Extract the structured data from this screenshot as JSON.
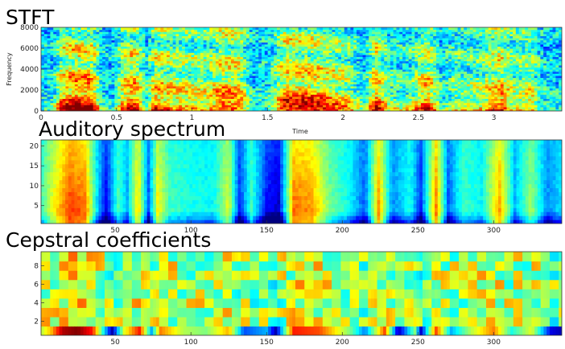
{
  "chart_data": [
    {
      "type": "heatmap",
      "title": "STFT",
      "xlabel": "Time",
      "ylabel": "Frequency",
      "xlim": [
        0,
        3.45
      ],
      "ylim": [
        0,
        8000
      ],
      "x_ticks": [
        0,
        0.5,
        1,
        1.5,
        2,
        2.5,
        3
      ],
      "x_tick_labels": [
        "0",
        "0.5",
        "1",
        "1.5",
        "2",
        "2.5",
        "3"
      ],
      "y_ticks": [
        0,
        2000,
        4000,
        6000,
        8000
      ],
      "y_tick_labels": [
        "0",
        "2000",
        "4000",
        "6000",
        "8000"
      ],
      "colormap": "jet",
      "energy_envelope": [
        {
          "x": 0.0,
          "v": 0.3
        },
        {
          "x": 0.08,
          "v": 0.35
        },
        {
          "x": 0.14,
          "v": 0.85
        },
        {
          "x": 0.22,
          "v": 1.0
        },
        {
          "x": 0.34,
          "v": 0.95
        },
        {
          "x": 0.4,
          "v": 0.35
        },
        {
          "x": 0.48,
          "v": 0.3
        },
        {
          "x": 0.55,
          "v": 0.8
        },
        {
          "x": 0.62,
          "v": 0.95
        },
        {
          "x": 0.7,
          "v": 0.4
        },
        {
          "x": 0.76,
          "v": 0.85
        },
        {
          "x": 0.86,
          "v": 0.75
        },
        {
          "x": 1.0,
          "v": 0.7
        },
        {
          "x": 1.1,
          "v": 0.65
        },
        {
          "x": 1.2,
          "v": 0.9
        },
        {
          "x": 1.32,
          "v": 0.8
        },
        {
          "x": 1.4,
          "v": 0.3
        },
        {
          "x": 1.52,
          "v": 0.4
        },
        {
          "x": 1.62,
          "v": 0.95
        },
        {
          "x": 1.8,
          "v": 0.9
        },
        {
          "x": 1.96,
          "v": 0.75
        },
        {
          "x": 2.05,
          "v": 0.65
        },
        {
          "x": 2.14,
          "v": 0.3
        },
        {
          "x": 2.22,
          "v": 0.92
        },
        {
          "x": 2.3,
          "v": 0.5
        },
        {
          "x": 2.4,
          "v": 0.45
        },
        {
          "x": 2.48,
          "v": 0.6
        },
        {
          "x": 2.56,
          "v": 0.9
        },
        {
          "x": 2.66,
          "v": 0.35
        },
        {
          "x": 2.74,
          "v": 0.55
        },
        {
          "x": 2.84,
          "v": 0.55
        },
        {
          "x": 2.92,
          "v": 0.6
        },
        {
          "x": 3.04,
          "v": 0.9
        },
        {
          "x": 3.14,
          "v": 0.55
        },
        {
          "x": 3.24,
          "v": 0.7
        },
        {
          "x": 3.32,
          "v": 0.35
        },
        {
          "x": 3.45,
          "v": 0.3
        }
      ]
    },
    {
      "type": "heatmap",
      "title": "Auditory spectrum",
      "xlabel": "",
      "ylabel": "",
      "xlim": [
        1,
        345
      ],
      "ylim": [
        0.5,
        21.5
      ],
      "x_ticks": [
        50,
        100,
        150,
        200,
        250,
        300
      ],
      "x_tick_labels": [
        "50",
        "100",
        "150",
        "200",
        "250",
        "300"
      ],
      "y_ticks": [
        5,
        10,
        15,
        20
      ],
      "y_tick_labels": [
        "5",
        "10",
        "15",
        "20"
      ],
      "colormap": "jet",
      "energy_envelope": [
        {
          "x": 1,
          "v": 0.55
        },
        {
          "x": 10,
          "v": 0.75
        },
        {
          "x": 20,
          "v": 0.95
        },
        {
          "x": 30,
          "v": 0.9
        },
        {
          "x": 38,
          "v": 0.45
        },
        {
          "x": 44,
          "v": 0.2
        },
        {
          "x": 52,
          "v": 0.55
        },
        {
          "x": 58,
          "v": 0.4
        },
        {
          "x": 65,
          "v": 0.8
        },
        {
          "x": 72,
          "v": 0.3
        },
        {
          "x": 78,
          "v": 0.75
        },
        {
          "x": 86,
          "v": 0.55
        },
        {
          "x": 100,
          "v": 0.5
        },
        {
          "x": 115,
          "v": 0.48
        },
        {
          "x": 125,
          "v": 0.72
        },
        {
          "x": 132,
          "v": 0.25
        },
        {
          "x": 140,
          "v": 0.55
        },
        {
          "x": 150,
          "v": 0.22
        },
        {
          "x": 158,
          "v": 0.15
        },
        {
          "x": 168,
          "v": 0.9
        },
        {
          "x": 180,
          "v": 0.85
        },
        {
          "x": 192,
          "v": 0.6
        },
        {
          "x": 205,
          "v": 0.48
        },
        {
          "x": 215,
          "v": 0.3
        },
        {
          "x": 224,
          "v": 0.85
        },
        {
          "x": 233,
          "v": 0.35
        },
        {
          "x": 245,
          "v": 0.5
        },
        {
          "x": 252,
          "v": 0.25
        },
        {
          "x": 262,
          "v": 0.88
        },
        {
          "x": 270,
          "v": 0.3
        },
        {
          "x": 280,
          "v": 0.55
        },
        {
          "x": 292,
          "v": 0.48
        },
        {
          "x": 304,
          "v": 0.85
        },
        {
          "x": 314,
          "v": 0.4
        },
        {
          "x": 325,
          "v": 0.65
        },
        {
          "x": 335,
          "v": 0.35
        },
        {
          "x": 345,
          "v": 0.45
        }
      ]
    },
    {
      "type": "heatmap",
      "title": "Cepstral coefficients",
      "xlabel": "",
      "ylabel": "",
      "xlim": [
        1,
        345
      ],
      "ylim": [
        0.5,
        9.5
      ],
      "x_ticks": [
        50,
        100,
        150,
        200,
        250,
        300
      ],
      "x_tick_labels": [
        "50",
        "100",
        "150",
        "200",
        "250",
        "300"
      ],
      "y_ticks": [
        2,
        4,
        6,
        8
      ],
      "y_tick_labels": [
        "2",
        "4",
        "6",
        "8"
      ],
      "colormap": "jet",
      "c0_row": [
        {
          "x": 1,
          "v": 0.55
        },
        {
          "x": 8,
          "v": 0.7
        },
        {
          "x": 15,
          "v": 0.95
        },
        {
          "x": 25,
          "v": 1.0
        },
        {
          "x": 35,
          "v": 0.85
        },
        {
          "x": 42,
          "v": 0.4
        },
        {
          "x": 48,
          "v": 0.05
        },
        {
          "x": 56,
          "v": 0.6
        },
        {
          "x": 66,
          "v": 0.85
        },
        {
          "x": 74,
          "v": 0.3
        },
        {
          "x": 80,
          "v": 0.75
        },
        {
          "x": 95,
          "v": 0.55
        },
        {
          "x": 110,
          "v": 0.5
        },
        {
          "x": 125,
          "v": 0.7
        },
        {
          "x": 135,
          "v": 0.2
        },
        {
          "x": 150,
          "v": 0.3
        },
        {
          "x": 156,
          "v": 0.05
        },
        {
          "x": 168,
          "v": 0.85
        },
        {
          "x": 185,
          "v": 0.8
        },
        {
          "x": 205,
          "v": 0.5
        },
        {
          "x": 215,
          "v": 0.25
        },
        {
          "x": 228,
          "v": 0.8
        },
        {
          "x": 237,
          "v": 0.05
        },
        {
          "x": 248,
          "v": 0.5
        },
        {
          "x": 252,
          "v": 0.08
        },
        {
          "x": 262,
          "v": 0.8
        },
        {
          "x": 272,
          "v": 0.3
        },
        {
          "x": 285,
          "v": 0.55
        },
        {
          "x": 300,
          "v": 0.75
        },
        {
          "x": 312,
          "v": 0.4
        },
        {
          "x": 325,
          "v": 0.6
        },
        {
          "x": 338,
          "v": 0.1
        },
        {
          "x": 345,
          "v": 0.05
        }
      ]
    }
  ]
}
